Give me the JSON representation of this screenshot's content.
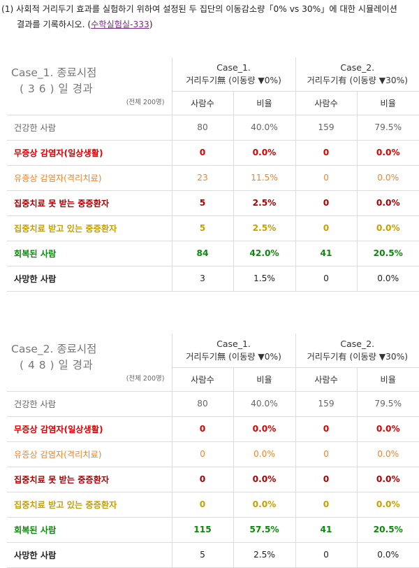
{
  "intro": {
    "line1": "(1) 사회적 거리두기 효과를 실험하기 위하여 설정된 두 집단의 이동감소량「0% vs 30%」에 대한 시뮬레이션",
    "line2_prefix": "결과를 기록하시오. (",
    "link": "수학실험실-333",
    "line2_suffix": ")"
  },
  "tables": [
    {
      "title1": "Case_1. 종료시점",
      "title2": "( 3 6 ) 일 경과",
      "total": "(전체 200명)",
      "cases": [
        {
          "name": "Case_1.",
          "desc": "거리두기無 (이동량 ▼0%)"
        },
        {
          "name": "Case_2.",
          "desc": "거리두기有 (이동량 ▼30%)"
        }
      ],
      "subheaders": [
        "사람수",
        "비율",
        "사람수",
        "비율"
      ],
      "rows": [
        {
          "label": "건강한 사람",
          "c1n": "80",
          "c1p": "40.0%",
          "c2n": "159",
          "c2p": "79.5%"
        },
        {
          "label": "무증상 감염자(일상생활)",
          "c1n": "0",
          "c1p": "0.0%",
          "c2n": "0",
          "c2p": "0.0%"
        },
        {
          "label": "유증상 감염자(격리치료)",
          "c1n": "23",
          "c1p": "11.5%",
          "c2n": "0",
          "c2p": "0.0%"
        },
        {
          "label": "집중치료 못 받는 중증환자",
          "c1n": "5",
          "c1p": "2.5%",
          "c2n": "0",
          "c2p": "0.0%"
        },
        {
          "label": "집중치료 받고 있는 중증환자",
          "c1n": "5",
          "c1p": "2.5%",
          "c2n": "0",
          "c2p": "0.0%"
        },
        {
          "label": "회복된 사람",
          "c1n": "84",
          "c1p": "42.0%",
          "c2n": "41",
          "c2p": "20.5%"
        },
        {
          "label": "사망한 사람",
          "c1n": "3",
          "c1p": "1.5%",
          "c2n": "0",
          "c2p": "0.0%"
        }
      ]
    },
    {
      "title1": "Case_2. 종료시점",
      "title2": "( 4 8 ) 일 경과",
      "total": "(전체 200명)",
      "cases": [
        {
          "name": "Case_1.",
          "desc": "거리두기無 (이동량 ▼0%)"
        },
        {
          "name": "Case_2.",
          "desc": "거리두기有 (이동량 ▼30%)"
        }
      ],
      "subheaders": [
        "사람수",
        "비율",
        "사람수",
        "비율"
      ],
      "rows": [
        {
          "label": "건강한 사람",
          "c1n": "80",
          "c1p": "40.0%",
          "c2n": "159",
          "c2p": "79.5%"
        },
        {
          "label": "무증상 감염자(일상생활)",
          "c1n": "0",
          "c1p": "0.0%",
          "c2n": "0",
          "c2p": "0.0%"
        },
        {
          "label": "유증상 감염자(격리치료)",
          "c1n": "0",
          "c1p": "0.0%",
          "c2n": "0",
          "c2p": "0.0%"
        },
        {
          "label": "집중치료 못 받는 중증환자",
          "c1n": "0",
          "c1p": "0.0%",
          "c2n": "0",
          "c2p": "0.0%"
        },
        {
          "label": "집중치료 받고 있는 중증환자",
          "c1n": "0",
          "c1p": "0.0%",
          "c2n": "0",
          "c2p": "0.0%"
        },
        {
          "label": "회복된 사람",
          "c1n": "115",
          "c1p": "57.5%",
          "c2n": "41",
          "c2p": "20.5%"
        },
        {
          "label": "사망한 사람",
          "c1n": "5",
          "c1p": "2.5%",
          "c2n": "0",
          "c2p": "0.0%"
        }
      ]
    }
  ]
}
